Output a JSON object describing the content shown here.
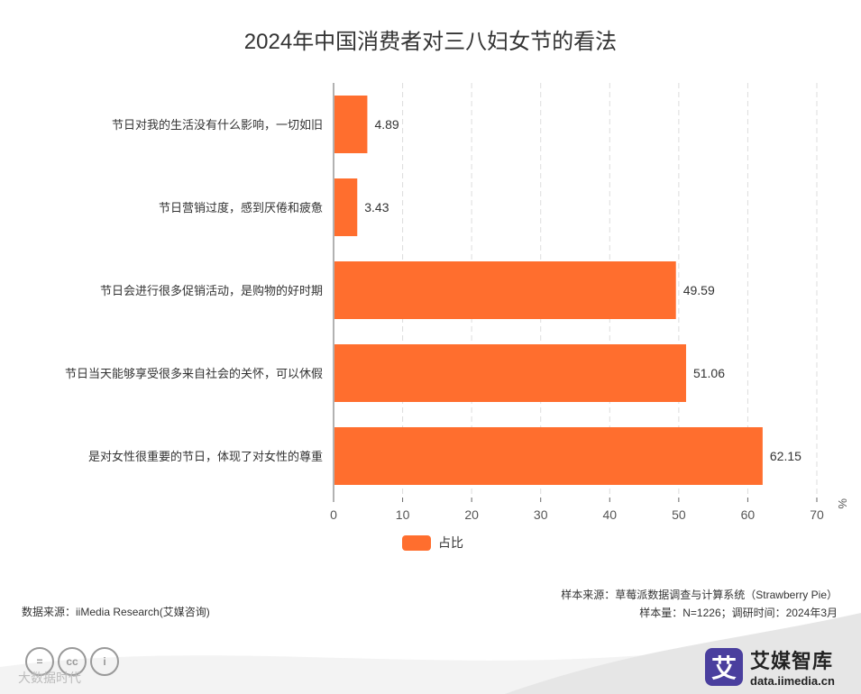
{
  "chart_data": {
    "type": "bar",
    "orientation": "horizontal",
    "title": "2024年中国消费者对三八妇女节的看法",
    "categories": [
      "节日对我的生活没有什么影响，一切如旧",
      "节日营销过度，感到厌倦和疲惫",
      "节日会进行很多促销活动，是购物的好时期",
      "节日当天能够享受很多来自社会的关怀，可以休假",
      "是对女性很重要的节日，体现了对女性的尊重"
    ],
    "series": [
      {
        "name": "占比",
        "values": [
          4.89,
          3.43,
          49.59,
          51.06,
          62.15
        ],
        "color": "#ff6e2e"
      }
    ],
    "xlim": [
      0,
      70
    ],
    "xticks": [
      "0",
      "10",
      "20",
      "30",
      "40",
      "50",
      "60",
      "70"
    ],
    "unit": "%",
    "grid": "vertical dashed",
    "legend_position": "bottom"
  },
  "footer": {
    "source": "数据来源：iiMedia Research(艾媒咨询)",
    "sample_source": "样本来源：草莓派数据调查与计算系统（Strawberry Pie）",
    "sample_info": "样本量：N=1226；调研时间：2024年3月"
  },
  "brand": {
    "name": "艾媒智库",
    "url": "data.iimedia.cn",
    "logo_char": "艾",
    "color": "#4a3f9e"
  },
  "license": {
    "caption": "大数据时代"
  }
}
